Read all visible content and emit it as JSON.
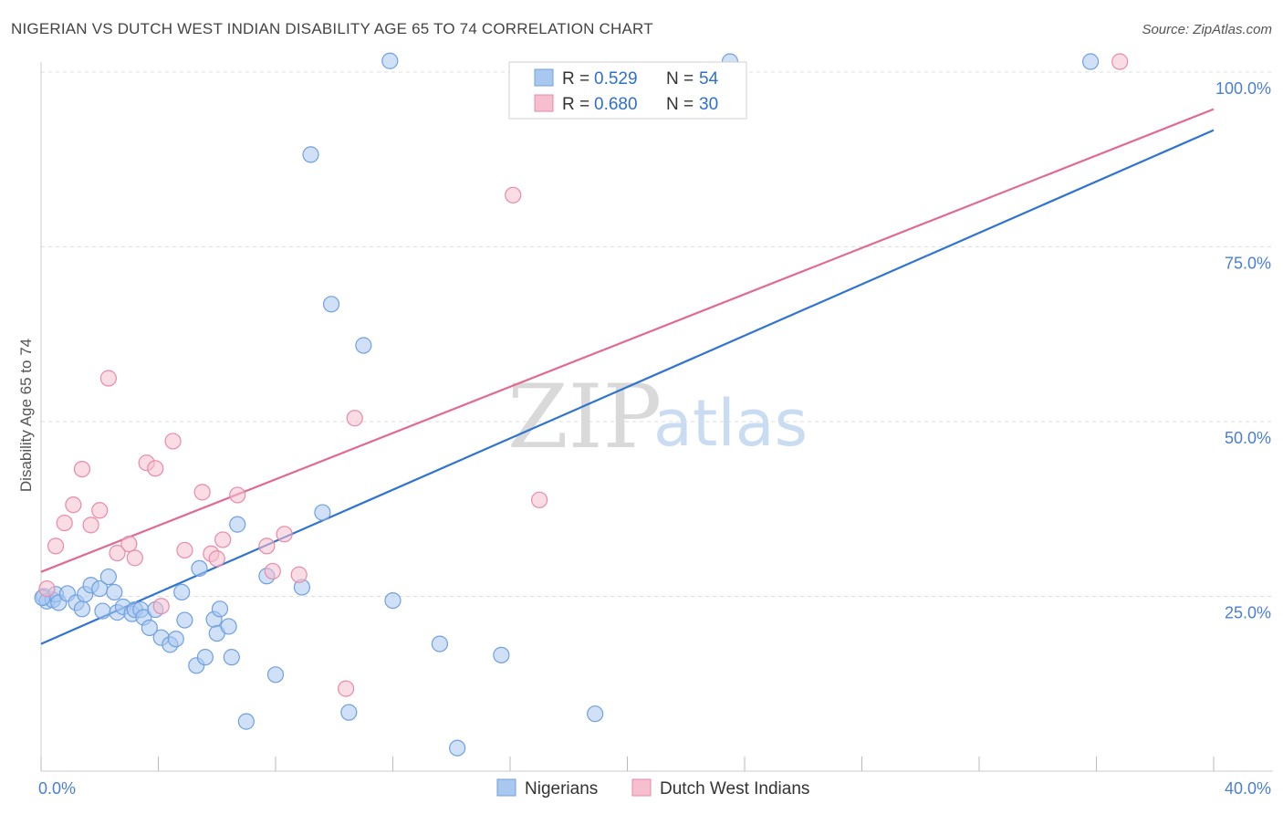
{
  "header": {
    "title": "NIGERIAN VS DUTCH WEST INDIAN DISABILITY AGE 65 TO 74 CORRELATION CHART",
    "source": "Source: ZipAtlas.com"
  },
  "watermark": {
    "zip": "ZIP",
    "atlas": "atlas"
  },
  "colors": {
    "nigerians_fill": "#a9c8f0",
    "nigerians_stroke": "#6fa0e0",
    "nigerians_line": "#2f74d0",
    "dutch_fill": "#f6bfd0",
    "dutch_stroke": "#e98aa8",
    "dutch_line": "#e06a93",
    "grid": "#dddddd",
    "axis_tick_text": "#4a7fd4"
  },
  "chart_data": {
    "type": "scatter",
    "xlabel": "",
    "ylabel": "Disability Age 65 to 74",
    "xlim": [
      0,
      40
    ],
    "ylim": [
      0,
      105
    ],
    "x_tick_labels": [
      {
        "value": 0,
        "label": "0.0%"
      },
      {
        "value": 40,
        "label": "40.0%"
      }
    ],
    "y_tick_labels": [
      {
        "value": 25,
        "label": "25.0%"
      },
      {
        "value": 50,
        "label": "50.0%"
      },
      {
        "value": 75,
        "label": "75.0%"
      },
      {
        "value": 100,
        "label": "100.0%"
      }
    ],
    "grid": "horizontal dashed",
    "legend_top": [
      {
        "r_label": "R =",
        "r_value": "0.529",
        "n_label": "N =",
        "n_value": "54"
      },
      {
        "r_label": "R =",
        "r_value": "0.680",
        "n_label": "N =",
        "n_value": "30"
      }
    ],
    "series": [
      {
        "name": "Nigerians",
        "trend": {
          "x0": 0,
          "y0": 18.2,
          "x1": 40,
          "y1": 91.7
        },
        "points": [
          [
            0.1,
            25.0
          ],
          [
            0.2,
            24.3
          ],
          [
            0.4,
            24.5
          ],
          [
            0.5,
            25.3
          ],
          [
            0.6,
            24.1
          ],
          [
            0.9,
            25.4
          ],
          [
            1.2,
            24.1
          ],
          [
            1.4,
            23.2
          ],
          [
            1.5,
            25.3
          ],
          [
            1.7,
            26.6
          ],
          [
            2.0,
            26.1
          ],
          [
            2.1,
            22.9
          ],
          [
            2.3,
            27.8
          ],
          [
            2.5,
            25.6
          ],
          [
            2.6,
            22.7
          ],
          [
            2.8,
            23.5
          ],
          [
            3.1,
            22.5
          ],
          [
            3.2,
            23.1
          ],
          [
            3.4,
            23.1
          ],
          [
            3.5,
            22.0
          ],
          [
            3.7,
            20.5
          ],
          [
            3.9,
            23.1
          ],
          [
            4.1,
            19.1
          ],
          [
            4.4,
            18.1
          ],
          [
            4.6,
            18.9
          ],
          [
            4.8,
            25.6
          ],
          [
            4.9,
            21.6
          ],
          [
            5.3,
            15.1
          ],
          [
            5.4,
            29.0
          ],
          [
            5.6,
            16.3
          ],
          [
            5.9,
            21.7
          ],
          [
            6.0,
            19.7
          ],
          [
            6.1,
            23.2
          ],
          [
            6.4,
            20.7
          ],
          [
            6.5,
            16.3
          ],
          [
            6.7,
            35.3
          ],
          [
            7.0,
            7.1
          ],
          [
            7.7,
            27.9
          ],
          [
            8.0,
            13.8
          ],
          [
            8.9,
            26.3
          ],
          [
            9.2,
            88.2
          ],
          [
            9.6,
            37.0
          ],
          [
            9.9,
            66.8
          ],
          [
            10.5,
            8.4
          ],
          [
            11.0,
            60.9
          ],
          [
            11.9,
            101.6
          ],
          [
            12.0,
            24.4
          ],
          [
            13.6,
            18.2
          ],
          [
            14.2,
            3.3
          ],
          [
            15.7,
            16.6
          ],
          [
            18.9,
            8.2
          ],
          [
            23.5,
            101.5
          ],
          [
            35.8,
            101.5
          ],
          [
            0.05,
            24.8
          ]
        ]
      },
      {
        "name": "Dutch West Indians",
        "trend": {
          "x0": 0,
          "y0": 28.5,
          "x1": 40,
          "y1": 94.7
        },
        "points": [
          [
            0.2,
            26.1
          ],
          [
            0.5,
            32.2
          ],
          [
            0.8,
            35.5
          ],
          [
            1.1,
            38.1
          ],
          [
            1.4,
            43.2
          ],
          [
            1.7,
            35.2
          ],
          [
            2.0,
            37.3
          ],
          [
            2.3,
            56.2
          ],
          [
            2.6,
            31.2
          ],
          [
            3.0,
            32.5
          ],
          [
            3.2,
            30.5
          ],
          [
            3.6,
            44.1
          ],
          [
            3.9,
            43.3
          ],
          [
            4.1,
            23.6
          ],
          [
            4.5,
            47.2
          ],
          [
            4.9,
            31.6
          ],
          [
            5.5,
            39.9
          ],
          [
            5.8,
            31.1
          ],
          [
            6.0,
            30.4
          ],
          [
            6.2,
            33.1
          ],
          [
            6.7,
            39.5
          ],
          [
            7.7,
            32.2
          ],
          [
            7.9,
            28.6
          ],
          [
            8.3,
            33.9
          ],
          [
            8.8,
            28.1
          ],
          [
            10.4,
            11.8
          ],
          [
            10.7,
            50.5
          ],
          [
            16.1,
            82.4
          ],
          [
            17.0,
            38.8
          ],
          [
            36.8,
            101.5
          ]
        ]
      }
    ],
    "bottom_legend": [
      "Nigerians",
      "Dutch West Indians"
    ]
  }
}
